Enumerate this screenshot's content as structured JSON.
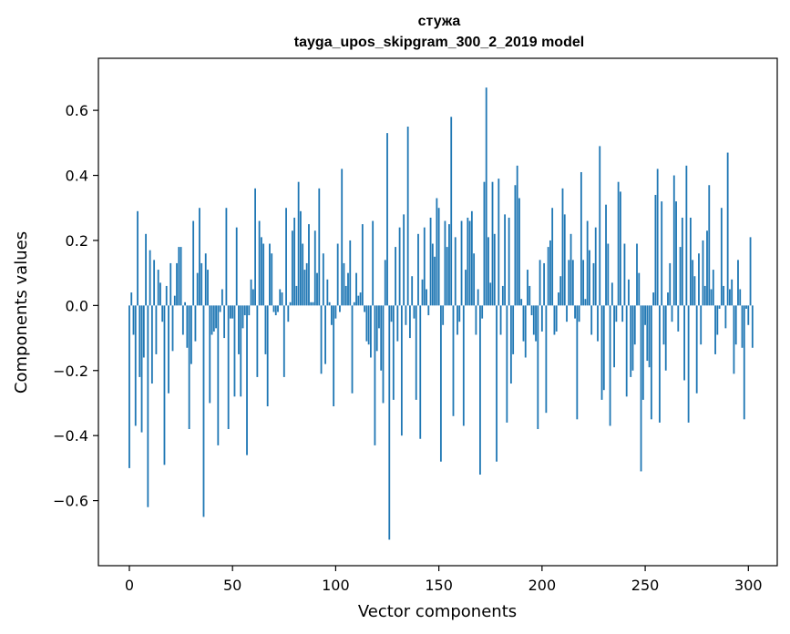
{
  "chart_data": {
    "type": "bar",
    "title": "стужа",
    "subtitle": "tayga_upos_skipgram_300_2_2019 model",
    "xlabel": "Vector components",
    "ylabel": "Components values",
    "xlim": [
      -15,
      314
    ],
    "ylim": [
      -0.8,
      0.76
    ],
    "xticks": [
      0,
      50,
      100,
      150,
      200,
      250,
      300
    ],
    "xtick_labels": [
      "0",
      "50",
      "100",
      "150",
      "200",
      "250",
      "300"
    ],
    "yticks": [
      -0.6,
      -0.4,
      -0.2,
      0.0,
      0.2,
      0.4,
      0.6
    ],
    "ytick_labels": [
      "−0.6",
      "−0.4",
      "−0.2",
      "0.0",
      "0.2",
      "0.4",
      "0.6"
    ],
    "bar_color": "#1f77b4",
    "grid": false,
    "series": [
      {
        "name": "стужа",
        "values": [
          -0.5,
          0.04,
          -0.09,
          -0.37,
          0.29,
          -0.22,
          -0.39,
          -0.16,
          0.22,
          -0.62,
          0.17,
          -0.24,
          0.14,
          -0.15,
          0.11,
          0.07,
          -0.05,
          -0.49,
          0.06,
          -0.27,
          0.13,
          -0.14,
          0.03,
          0.13,
          0.18,
          0.18,
          -0.09,
          0.01,
          -0.13,
          -0.38,
          -0.18,
          0.26,
          -0.11,
          0.1,
          0.3,
          0.13,
          -0.65,
          0.16,
          0.11,
          -0.3,
          -0.09,
          -0.08,
          -0.07,
          -0.43,
          -0.02,
          0.05,
          -0.1,
          0.3,
          -0.38,
          -0.04,
          -0.04,
          -0.28,
          0.24,
          -0.15,
          -0.28,
          -0.07,
          -0.03,
          -0.46,
          -0.03,
          0.08,
          0.05,
          0.36,
          -0.22,
          0.26,
          0.21,
          0.19,
          -0.15,
          -0.31,
          0.19,
          0.16,
          -0.02,
          -0.03,
          -0.02,
          0.05,
          0.04,
          -0.22,
          0.3,
          -0.05,
          0.01,
          0.23,
          0.27,
          0.06,
          0.38,
          0.29,
          0.19,
          0.11,
          0.13,
          0.25,
          0.01,
          0.01,
          0.23,
          0.1,
          0.36,
          -0.21,
          0.16,
          -0.18,
          0.08,
          0.01,
          -0.06,
          -0.31,
          -0.04,
          0.19,
          -0.02,
          0.42,
          0.13,
          0.06,
          0.1,
          0.2,
          -0.27,
          0.01,
          0.1,
          0.03,
          0.04,
          0.25,
          -0.02,
          -0.11,
          -0.12,
          -0.16,
          0.26,
          -0.43,
          -0.14,
          -0.07,
          -0.2,
          -0.3,
          0.14,
          0.53,
          -0.72,
          -0.05,
          -0.29,
          0.18,
          -0.11,
          0.24,
          -0.4,
          0.28,
          -0.06,
          0.55,
          -0.1,
          0.09,
          -0.04,
          -0.29,
          0.22,
          -0.41,
          0.08,
          0.24,
          0.05,
          -0.03,
          0.27,
          0.19,
          0.15,
          0.33,
          0.3,
          -0.48,
          -0.06,
          0.26,
          0.18,
          0.25,
          0.58,
          -0.34,
          0.21,
          -0.09,
          -0.05,
          0.26,
          -0.37,
          0.11,
          0.27,
          0.26,
          0.29,
          0.16,
          -0.09,
          0.05,
          -0.52,
          -0.04,
          0.38,
          0.67,
          0.21,
          0.07,
          0.38,
          0.22,
          -0.48,
          0.39,
          -0.09,
          0.06,
          0.28,
          -0.36,
          0.27,
          -0.24,
          -0.15,
          0.37,
          0.43,
          0.33,
          0.02,
          -0.11,
          -0.16,
          0.11,
          0.06,
          -0.03,
          -0.09,
          -0.11,
          -0.38,
          0.14,
          -0.08,
          0.13,
          -0.33,
          0.18,
          0.2,
          0.3,
          -0.09,
          -0.08,
          0.04,
          0.09,
          0.36,
          0.28,
          -0.05,
          0.14,
          0.22,
          0.14,
          -0.04,
          -0.35,
          -0.05,
          0.41,
          0.14,
          0.02,
          0.26,
          0.17,
          -0.09,
          0.13,
          0.24,
          -0.11,
          0.49,
          -0.29,
          -0.26,
          0.31,
          0.19,
          -0.37,
          0.07,
          -0.19,
          -0.05,
          0.38,
          0.35,
          -0.05,
          0.19,
          -0.28,
          0.08,
          -0.22,
          -0.2,
          -0.12,
          0.19,
          0.1,
          -0.51,
          -0.29,
          -0.06,
          -0.17,
          -0.19,
          -0.35,
          0.04,
          0.34,
          0.42,
          -0.36,
          0.32,
          -0.12,
          -0.2,
          0.04,
          0.13,
          -0.05,
          0.4,
          0.32,
          -0.08,
          0.18,
          0.27,
          -0.23,
          0.43,
          -0.36,
          0.27,
          0.14,
          0.09,
          -0.27,
          0.16,
          -0.12,
          0.2,
          0.06,
          0.23,
          0.37,
          0.05,
          0.11,
          -0.15,
          -0.09,
          -0.01,
          0.3,
          0.06,
          -0.07,
          0.47,
          0.05,
          0.08,
          -0.21,
          -0.12,
          0.14,
          0.05,
          -0.13,
          -0.35,
          -0.01,
          -0.06,
          0.21,
          -0.13
        ]
      }
    ]
  }
}
